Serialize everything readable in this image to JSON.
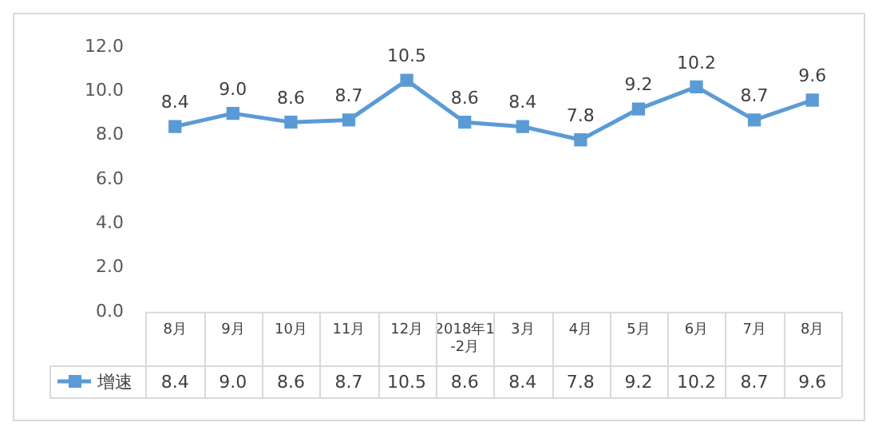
{
  "chart_data": {
    "type": "line",
    "categories": [
      "8月",
      "9月",
      "10月",
      "11月",
      "12月",
      "2018年1-2月",
      "3月",
      "4月",
      "5月",
      "6月",
      "7月",
      "8月"
    ],
    "series": [
      {
        "name": "增速",
        "color": "#5b9bd5",
        "values": [
          8.4,
          9.0,
          8.6,
          8.7,
          10.5,
          8.6,
          8.4,
          7.8,
          9.2,
          10.2,
          8.7,
          9.6
        ],
        "value_labels": [
          "8.4",
          "9.0",
          "8.6",
          "8.7",
          "10.5",
          "8.6",
          "8.4",
          "7.8",
          "9.2",
          "10.2",
          "8.7",
          "9.6"
        ]
      }
    ],
    "ylim": [
      0,
      12
    ],
    "yticks": [
      {
        "value": 0,
        "label": "0.0"
      },
      {
        "value": 2,
        "label": "2.0"
      },
      {
        "value": 4,
        "label": "4.0"
      },
      {
        "value": 6,
        "label": "6.0"
      },
      {
        "value": 8,
        "label": "8.0"
      },
      {
        "value": 10,
        "label": "10.0"
      },
      {
        "value": 12,
        "label": "12.0"
      }
    ],
    "grid": false,
    "legend": "bottom left",
    "marker": "square",
    "line_style": "solid"
  }
}
